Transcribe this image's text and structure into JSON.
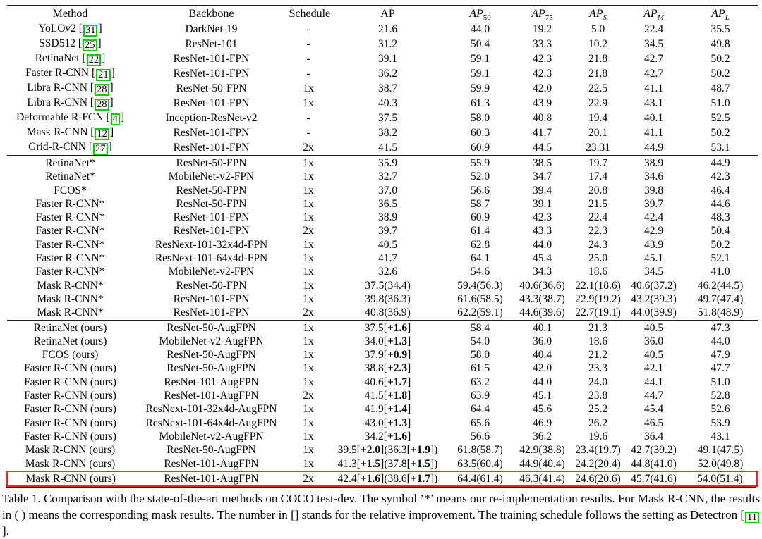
{
  "colors": {
    "citation_box": "#00d400",
    "highlight_box": "#e12b2b",
    "rule": "#1c1c1c",
    "text": "#000000",
    "background": "#ffffff"
  },
  "table": {
    "columns": [
      {
        "label": "Method"
      },
      {
        "label": "Backbone"
      },
      {
        "label": "Schedule"
      },
      {
        "label": "AP"
      },
      {
        "label": "AP",
        "sub": "50"
      },
      {
        "label": "AP",
        "sub": "75"
      },
      {
        "label": "AP",
        "sub": "S"
      },
      {
        "label": "AP",
        "sub": "M"
      },
      {
        "label": "AP",
        "sub": "L"
      }
    ],
    "highlight": {
      "section": 2,
      "row": 11
    },
    "sections": [
      {
        "name": "published-methods",
        "rows": [
          [
            "YoLOv2 [31]",
            "DarkNet-19",
            "-",
            "21.6",
            "44.0",
            "19.2",
            "5.0",
            "22.4",
            "35.5"
          ],
          [
            "SSD512 [25]",
            "ResNet-101",
            "-",
            "31.2",
            "50.4",
            "33.3",
            "10.2",
            "34.5",
            "49.8"
          ],
          [
            "RetinaNet [22]",
            "ResNet-101-FPN",
            "-",
            "39.1",
            "59.1",
            "42.3",
            "21.8",
            "42.7",
            "50.2"
          ],
          [
            "Faster R-CNN [21]",
            "ResNet-101-FPN",
            "-",
            "36.2",
            "59.1",
            "42.3",
            "21.8",
            "42.7",
            "50.2"
          ],
          [
            "Libra R-CNN [28]",
            "ResNet-50-FPN",
            "1x",
            "38.7",
            "59.9",
            "42.0",
            "22.5",
            "41.1",
            "48.7"
          ],
          [
            "Libra R-CNN [28]",
            "ResNet-101-FPN",
            "1x",
            "40.3",
            "61.3",
            "43.9",
            "22.9",
            "43.1",
            "51.0"
          ],
          [
            "Deformable R-FCN [4]",
            "Inception-ResNet-v2",
            "-",
            "37.5",
            "58.0",
            "40.8",
            "19.4",
            "40.1",
            "52.5"
          ],
          [
            "Mask R-CNN [12]",
            "ResNet-101-FPN",
            "-",
            "38.2",
            "60.3",
            "41.7",
            "20.1",
            "41.1",
            "50.2"
          ],
          [
            "Grid-R-CNN [27]",
            "ResNet-101-FPN",
            "2x",
            "41.5",
            "60.9",
            "44.5",
            "23.31",
            "44.9",
            "53.1"
          ]
        ]
      },
      {
        "name": "reimplementation",
        "rows": [
          [
            "RetinaNet*",
            "ResNet-50-FPN",
            "1x",
            "35.9",
            "55.9",
            "38.5",
            "19.7",
            "38.9",
            "44.9"
          ],
          [
            "RetinaNet*",
            "MobileNet-v2-FPN",
            "1x",
            "32.7",
            "52.0",
            "34.7",
            "17.4",
            "34.6",
            "42.3"
          ],
          [
            "FCOS*",
            "ResNet-50-FPN",
            "1x",
            "37.0",
            "56.6",
            "39.4",
            "20.8",
            "39.8",
            "46.4"
          ],
          [
            "Faster R-CNN*",
            "ResNet-50-FPN",
            "1x",
            "36.5",
            "58.7",
            "39.1",
            "21.5",
            "39.7",
            "44.6"
          ],
          [
            "Faster R-CNN*",
            "ResNet-101-FPN",
            "1x",
            "38.9",
            "60.9",
            "42.3",
            "22.4",
            "42.4",
            "48.3"
          ],
          [
            "Faster R-CNN*",
            "ResNet-101-FPN",
            "2x",
            "39.7",
            "61.4",
            "43.3",
            "22.3",
            "42.9",
            "50.4"
          ],
          [
            "Faster R-CNN*",
            "ResNext-101-32x4d-FPN",
            "1x",
            "40.5",
            "62.8",
            "44.0",
            "24.3",
            "43.9",
            "50.2"
          ],
          [
            "Faster R-CNN*",
            "ResNext-101-64x4d-FPN",
            "1x",
            "41.7",
            "64.1",
            "45.4",
            "25.0",
            "45.1",
            "52.1"
          ],
          [
            "Faster R-CNN*",
            "MobileNet-v2-FPN",
            "1x",
            "32.6",
            "54.6",
            "34.3",
            "18.6",
            "34.5",
            "41.0"
          ],
          [
            "Mask R-CNN*",
            "ResNet-50-FPN",
            "1x",
            "37.5(34.4)",
            "59.4(56.3)",
            "40.6(36.6)",
            "22.1(18.6)",
            "40.6(37.2)",
            "46.2(44.5)"
          ],
          [
            "Mask R-CNN*",
            "ResNet-101-FPN",
            "1x",
            "39.8(36.3)",
            "61.6(58.5)",
            "43.3(38.7)",
            "22.9(19.2)",
            "43.2(39.3)",
            "49.7(47.4)"
          ],
          [
            "Mask R-CNN*",
            "ResNet-101-FPN",
            "2x",
            "40.8(36.9)",
            "62.2(59.1)",
            "44.6(39.6)",
            "22.7(19.1)",
            "44.0(39.9)",
            "51.8(48.9)"
          ]
        ]
      },
      {
        "name": "ours",
        "rows": [
          [
            "RetinaNet (ours)",
            "ResNet-50-AugFPN",
            "1x",
            "37.5[+1.6]",
            "58.4",
            "40.1",
            "21.3",
            "40.5",
            "47.3"
          ],
          [
            "RetinaNet (ours)",
            "MobileNet-v2-AugFPN",
            "1x",
            "34.0[+1.3]",
            "54.0",
            "36.0",
            "18.6",
            "36.0",
            "44.0"
          ],
          [
            "FCOS (ours)",
            "ResNet-50-AugFPN",
            "1x",
            "37.9[+0.9]",
            "58.0",
            "40.4",
            "21.2",
            "40.5",
            "47.9"
          ],
          [
            "Faster R-CNN (ours)",
            "ResNet-50-AugFPN",
            "1x",
            "38.8[+2.3]",
            "61.5",
            "42.0",
            "23.3",
            "42.1",
            "47.7"
          ],
          [
            "Faster R-CNN (ours)",
            "ResNet-101-AugFPN",
            "1x",
            "40.6[+1.7]",
            "63.2",
            "44.0",
            "24.0",
            "44.1",
            "51.0"
          ],
          [
            "Faster R-CNN (ours)",
            "ResNet-101-AugFPN",
            "2x",
            "41.5[+1.8]",
            "63.9",
            "45.1",
            "23.8",
            "44.7",
            "52.8"
          ],
          [
            "Faster R-CNN (ours)",
            "ResNext-101-32x4d-AugFPN",
            "1x",
            "41.9[+1.4]",
            "64.4",
            "45.6",
            "25.2",
            "45.4",
            "52.6"
          ],
          [
            "Faster R-CNN (ours)",
            "ResNext-101-64x4d-AugFPN",
            "1x",
            "43.0[+1.3]",
            "65.6",
            "46.9",
            "26.2",
            "46.5",
            "53.9"
          ],
          [
            "Faster R-CNN (ours)",
            "MobileNet-v2-AugFPN",
            "1x",
            "34.2[+1.6]",
            "56.6",
            "36.2",
            "19.6",
            "36.4",
            "43.1"
          ],
          [
            "Mask R-CNN (ours)",
            "ResNet-50-AugFPN",
            "1x",
            "39.5[+2.0](36.3[+1.9])",
            "61.8(58.7)",
            "42.9(38.8)",
            "23.4(19.7)",
            "42.7(39.2)",
            "49.1(47.5)"
          ],
          [
            "Mask R-CNN (ours)",
            "ResNet-101-AugFPN",
            "1x",
            "41.3[+1.5](37.8[+1.5])",
            "63.5(60.4)",
            "44.9(40.4)",
            "24.2(20.4)",
            "44.8(41.0)",
            "52.0(49.8)"
          ],
          [
            "Mask R-CNN (ours)",
            "ResNet-101-AugFPN",
            "2x",
            "42.4[+1.6](38.6[+1.7])",
            "64.4(61.4)",
            "46.3(41.4)",
            "24.6(20.6)",
            "45.7(41.6)",
            "54.0(51.4)"
          ]
        ]
      }
    ]
  },
  "caption": "Table 1. Comparison with the state-of-the-art methods on COCO test-dev. The symbol ’*’ means our re-implementation results. For Mask R-CNN, the results in ( ) means the corresponding mask results. The number in [] stands for the relative improvement. The training schedule follows the setting as Detectron [11]."
}
